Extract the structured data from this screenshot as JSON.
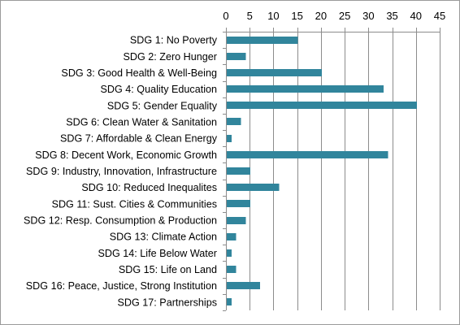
{
  "chart_data": {
    "type": "bar",
    "orientation": "horizontal",
    "title": "",
    "xlabel": "",
    "ylabel": "",
    "xlim": [
      0,
      45
    ],
    "x_ticks": [
      0,
      5,
      10,
      15,
      20,
      25,
      30,
      35,
      40,
      45
    ],
    "x_axis_position": "top",
    "grid": true,
    "legend": "none",
    "bar_color": "#31859c",
    "categories": [
      "SDG 1: No Poverty",
      "SDG 2: Zero Hunger",
      "SDG 3: Good Health & Well-Being",
      "SDG 4: Quality Education",
      "SDG 5: Gender Equality",
      "SDG 6: Clean Water & Sanitation",
      "SDG 7: Affordable & Clean Energy",
      "SDG 8: Decent Work, Economic Growth",
      "SDG 9: Industry, Innovation, Infrastructure",
      "SDG 10: Reduced Inequalites",
      "SDG 11: Sust. Cities & Communities",
      "SDG 12: Resp. Consumption & Production",
      "SDG 13: Climate Action",
      "SDG 14: Life Below Water",
      "SDG 15: Life on Land",
      "SDG 16: Peace, Justice, Strong Institution",
      "SDG 17: Partnerships"
    ],
    "values": [
      15,
      4,
      20,
      33,
      40,
      3,
      1,
      34,
      5,
      11,
      5,
      4,
      2,
      1,
      2,
      7,
      1
    ]
  }
}
